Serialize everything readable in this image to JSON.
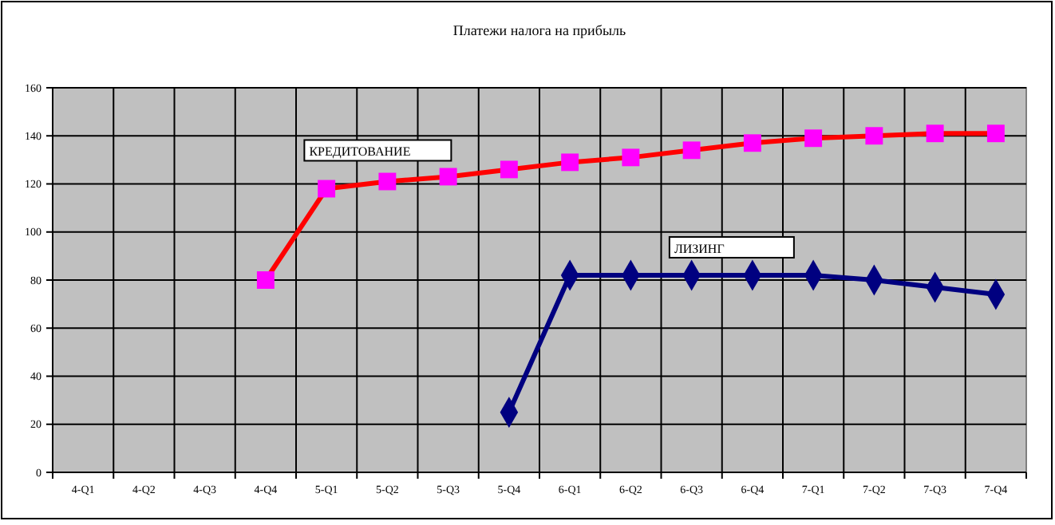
{
  "chart_data": {
    "type": "line",
    "title": "Платежи налога на прибыль",
    "categories": [
      "4-Q1",
      "4-Q2",
      "4-Q3",
      "4-Q4",
      "5-Q1",
      "5-Q2",
      "5-Q3",
      "5-Q4",
      "6-Q1",
      "6-Q2",
      "6-Q3",
      "6-Q4",
      "7-Q1",
      "7-Q2",
      "7-Q3",
      "7-Q4"
    ],
    "series": [
      {
        "name": "КРЕДИТОВАНИЕ",
        "color": "#ff0000",
        "marker": "square",
        "colors": [
          null,
          null,
          null,
          "#ff00ff",
          "#ff00ff",
          "#ff00ff",
          "#ff00ff",
          "#ff00ff",
          "#ff00ff",
          "#ff00ff",
          "#ff00ff",
          "#ff00ff",
          "#ff00ff",
          "#ff00ff",
          "#ff00ff",
          "#ff00ff"
        ],
        "values": [
          null,
          null,
          null,
          80,
          118,
          121,
          123,
          126,
          129,
          131,
          134,
          137,
          139,
          140,
          141,
          141
        ]
      },
      {
        "name": "ЛИЗИНГ",
        "color": "#000080",
        "marker": "diamond",
        "values": [
          null,
          null,
          null,
          null,
          null,
          null,
          null,
          25,
          82,
          82,
          82,
          82,
          82,
          80,
          77,
          74
        ]
      }
    ],
    "ylim": [
      0,
      160
    ],
    "yticks": [
      0,
      20,
      40,
      60,
      80,
      100,
      120,
      140,
      160
    ],
    "grid": true
  }
}
